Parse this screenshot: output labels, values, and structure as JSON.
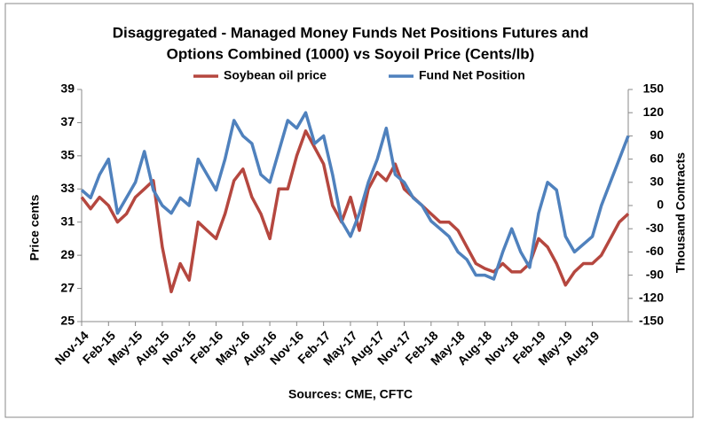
{
  "chart_data": {
    "type": "line",
    "title": "Disaggregated - Managed Money Funds Net Positions Futures and",
    "subtitle": "Options Combined (1000) vs Soyoil Price (Cents/lb)",
    "ylabel": "Price cents",
    "y2label": "Thousand Contracts",
    "source": "Sources: CME, CFTC",
    "categories": [
      "Nov-14",
      null,
      null,
      "Feb-15",
      null,
      null,
      "May-15",
      null,
      null,
      "Aug-15",
      null,
      null,
      "Nov-15",
      null,
      null,
      "Feb-16",
      null,
      null,
      "May-16",
      null,
      null,
      "Aug-16",
      null,
      null,
      "Nov-16",
      null,
      null,
      "Feb-17",
      null,
      null,
      "May-17",
      null,
      null,
      "Aug-17",
      null,
      null,
      "Nov-17",
      null,
      null,
      "Feb-18",
      null,
      null,
      "May-18",
      null,
      null,
      "Aug-18",
      null,
      null,
      "Nov-18",
      null,
      null,
      "Feb-19",
      null,
      null,
      "May-19",
      null,
      null,
      "Aug-19",
      null,
      null,
      null,
      null
    ],
    "series": [
      {
        "name": "Soybean oil price",
        "color": "#b5473f",
        "axis": "y",
        "values": [
          32.5,
          31.8,
          32.5,
          32.0,
          31.0,
          31.5,
          32.5,
          33.0,
          33.5,
          29.5,
          26.8,
          28.5,
          27.5,
          31.0,
          30.5,
          30.0,
          31.5,
          33.5,
          34.2,
          32.5,
          31.5,
          30.0,
          33.0,
          33.0,
          35.0,
          36.5,
          35.5,
          34.5,
          32.0,
          31.0,
          32.5,
          30.5,
          33.0,
          34.0,
          33.5,
          34.5,
          33.0,
          32.5,
          32.0,
          31.5,
          31.0,
          31.0,
          30.5,
          29.5,
          28.5,
          28.2,
          28.0,
          28.5,
          28.0,
          28.0,
          28.5,
          30.0,
          29.5,
          28.5,
          27.2,
          28.0,
          28.5,
          28.5,
          29.0,
          30.0,
          31.0,
          31.5
        ]
      },
      {
        "name": "Fund Net Position",
        "color": "#4f81bd",
        "axis": "y2",
        "values": [
          20,
          10,
          40,
          60,
          -10,
          10,
          30,
          70,
          20,
          0,
          -10,
          10,
          0,
          60,
          40,
          20,
          60,
          110,
          90,
          80,
          40,
          30,
          70,
          110,
          100,
          120,
          80,
          90,
          40,
          -20,
          -40,
          -10,
          30,
          60,
          100,
          40,
          30,
          10,
          0,
          -20,
          -30,
          -40,
          -60,
          -70,
          -90,
          -90,
          -95,
          -60,
          -30,
          -60,
          -80,
          -10,
          30,
          20,
          -40,
          -60,
          -50,
          -40,
          0,
          30,
          60,
          90
        ]
      }
    ],
    "ylim": [
      25,
      39
    ],
    "yticks": [
      25,
      27,
      29,
      31,
      33,
      35,
      37,
      39
    ],
    "y2lim": [
      -150,
      150
    ],
    "y2ticks": [
      -150,
      -120,
      -90,
      -60,
      -30,
      0,
      30,
      60,
      90,
      120,
      150
    ]
  }
}
